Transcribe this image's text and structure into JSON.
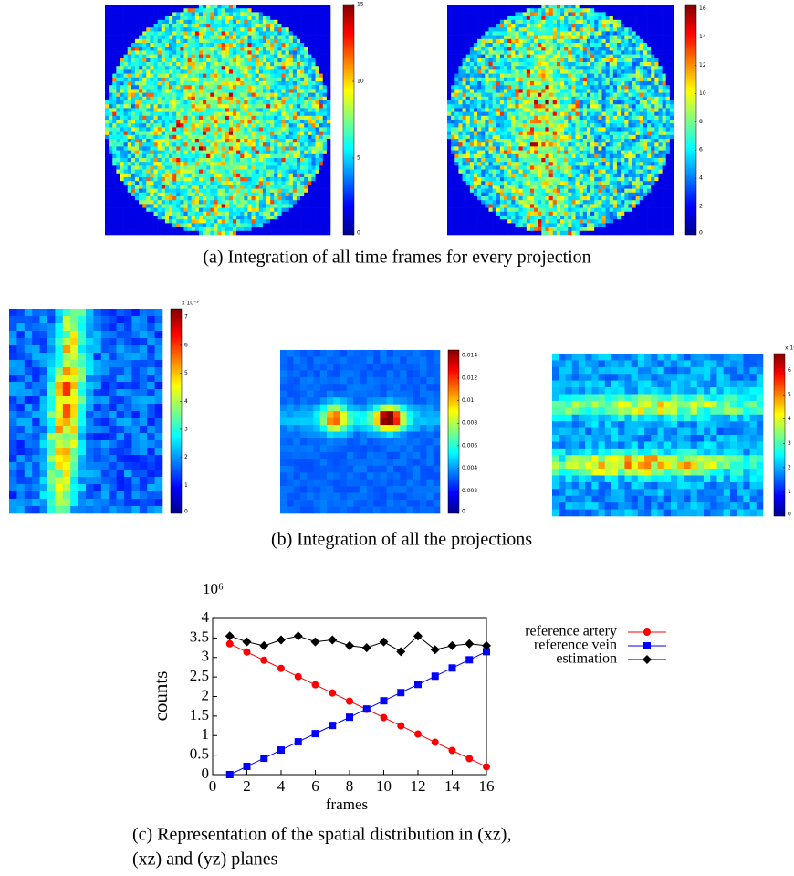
{
  "panels": [
    {
      "colorbar": {
        "lim": [
          0,
          15
        ],
        "ticks": [
          0,
          5,
          10,
          15
        ]
      }
    },
    {
      "colorbar": {
        "lim": [
          0,
          16.3
        ],
        "ticks": [
          0,
          2,
          4,
          6,
          8,
          10,
          12,
          14,
          16
        ]
      }
    },
    {
      "colorbar": {
        "multiplier": "x 10⁻³",
        "lim": [
          0,
          7.3
        ],
        "ticks": [
          0,
          1,
          2,
          3,
          4,
          5,
          6,
          7
        ]
      }
    },
    {
      "colorbar": {
        "lim": [
          0,
          0.0145
        ],
        "ticks": [
          0,
          0.002,
          0.004,
          0.006,
          0.008,
          0.01,
          0.012,
          0.014
        ]
      }
    },
    {
      "colorbar": {
        "multiplier": "x 10",
        "lim": [
          0,
          6.7
        ],
        "ticks": [
          0,
          1,
          2,
          3,
          4,
          5,
          6
        ]
      }
    }
  ],
  "captions": {
    "a": "(a) Integration of all time frames for every projection",
    "b": "(b) Integration of all the projections",
    "c": [
      "(c) Representation of the spatial distribution in (xz),",
      "(xz) and (yz) planes"
    ]
  },
  "chart_data": {
    "type": "line",
    "x": [
      1,
      2,
      3,
      4,
      5,
      6,
      7,
      8,
      9,
      10,
      11,
      12,
      13,
      14,
      15,
      16
    ],
    "series": [
      {
        "name": "reference artery",
        "color": "#ff0000",
        "marker": "circle",
        "values": [
          3.35,
          3.14,
          2.93,
          2.72,
          2.51,
          2.3,
          2.09,
          1.88,
          1.67,
          1.46,
          1.25,
          1.04,
          0.83,
          0.62,
          0.41,
          0.2
        ]
      },
      {
        "name": "reference vein",
        "color": "#0000ff",
        "marker": "square",
        "values": [
          0,
          0.21,
          0.42,
          0.63,
          0.84,
          1.05,
          1.26,
          1.47,
          1.68,
          1.89,
          2.1,
          2.31,
          2.52,
          2.73,
          2.94,
          3.15
        ]
      },
      {
        "name": "estimation",
        "color": "#000000",
        "marker": "diamond",
        "values": [
          3.55,
          3.4,
          3.3,
          3.45,
          3.55,
          3.4,
          3.45,
          3.3,
          3.25,
          3.4,
          3.15,
          3.55,
          3.2,
          3.3,
          3.35,
          3.3
        ]
      }
    ],
    "xlabel": "frames",
    "ylabel": "counts",
    "y_multiplier": "10⁶",
    "xlim": [
      0,
      16
    ],
    "ylim": [
      0,
      4
    ],
    "xticks": [
      0,
      2,
      4,
      6,
      8,
      10,
      12,
      14,
      16
    ],
    "yticks": [
      0,
      0.5,
      1,
      1.5,
      2,
      2.5,
      3,
      3.5,
      4
    ],
    "legend": "upper right"
  }
}
